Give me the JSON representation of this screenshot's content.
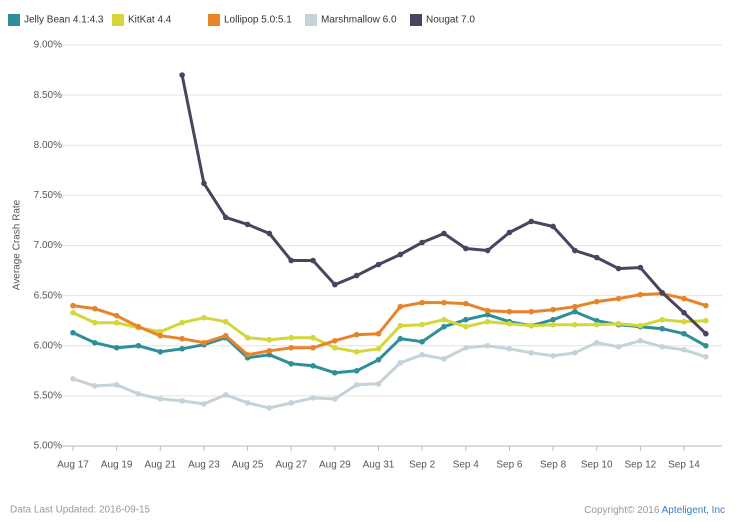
{
  "chart_data": {
    "type": "line",
    "y_label": "Average Crash Rate",
    "categories": [
      "Aug 17",
      null,
      "Aug 19",
      null,
      "Aug 21",
      null,
      "Aug 23",
      null,
      "Aug 25",
      null,
      "Aug 27",
      null,
      "Aug 29",
      null,
      "Aug 31",
      null,
      "Sep 2",
      null,
      "Sep 4",
      null,
      "Sep 6",
      null,
      "Sep 8",
      null,
      "Sep 10",
      null,
      "Sep 12",
      null,
      "Sep 14",
      null
    ],
    "ylim": [
      5,
      9
    ],
    "yticks": [
      {
        "value": 5,
        "label": "5.00%"
      },
      {
        "value": 5.5,
        "label": "5.50%"
      },
      {
        "value": 6,
        "label": "6.00%"
      },
      {
        "value": 6.5,
        "label": "6.50%"
      },
      {
        "value": 7,
        "label": "7.00%"
      },
      {
        "value": 7.5,
        "label": "7.50%"
      },
      {
        "value": 8,
        "label": "8.00%"
      },
      {
        "value": 8.5,
        "label": "8.50%"
      },
      {
        "value": 9,
        "label": "9.00%"
      }
    ],
    "grid": true,
    "series": [
      {
        "name": "Jelly Bean 4.1:4.3",
        "color": "#2e8f9a",
        "values": [
          6.13,
          6.03,
          5.98,
          6.0,
          5.94,
          5.97,
          6.01,
          6.08,
          5.88,
          5.91,
          5.82,
          5.8,
          5.73,
          5.75,
          5.86,
          6.07,
          6.04,
          6.19,
          6.26,
          6.31,
          6.24,
          6.2,
          6.26,
          6.34,
          6.25,
          6.21,
          6.19,
          6.17,
          6.12,
          6.0
        ]
      },
      {
        "name": "KitKat 4.4",
        "color": "#d4d63a",
        "values": [
          6.33,
          6.23,
          6.23,
          6.18,
          6.14,
          6.23,
          6.28,
          6.24,
          6.08,
          6.06,
          6.08,
          6.08,
          5.98,
          5.94,
          5.97,
          6.2,
          6.21,
          6.26,
          6.19,
          6.24,
          6.22,
          6.2,
          6.21,
          6.21,
          6.21,
          6.22,
          6.2,
          6.26,
          6.24,
          6.25
        ]
      },
      {
        "name": "Lollipop 5.0:5.1",
        "color": "#e8832a",
        "values": [
          6.4,
          6.37,
          6.3,
          6.19,
          6.1,
          6.07,
          6.03,
          6.1,
          5.91,
          5.95,
          5.98,
          5.98,
          6.05,
          6.11,
          6.12,
          6.39,
          6.43,
          6.43,
          6.42,
          6.35,
          6.34,
          6.34,
          6.36,
          6.39,
          6.44,
          6.47,
          6.51,
          6.52,
          6.47,
          6.4
        ]
      },
      {
        "name": "Marshmallow 6.0",
        "color": "#c5d3d9",
        "values": [
          5.67,
          5.6,
          5.61,
          5.52,
          5.47,
          5.45,
          5.42,
          5.51,
          5.43,
          5.38,
          5.43,
          5.48,
          5.47,
          5.61,
          5.62,
          5.83,
          5.91,
          5.87,
          5.98,
          6.0,
          5.97,
          5.93,
          5.9,
          5.93,
          6.03,
          5.99,
          6.05,
          5.99,
          5.96,
          5.89
        ]
      },
      {
        "name": "Nougat 7.0",
        "color": "#4a4460",
        "values": [
          null,
          null,
          null,
          null,
          null,
          8.7,
          7.62,
          7.28,
          7.21,
          7.12,
          6.85,
          6.85,
          6.61,
          6.7,
          6.81,
          6.91,
          7.03,
          7.12,
          6.97,
          6.95,
          7.13,
          7.24,
          7.19,
          6.95,
          6.88,
          6.77,
          6.78,
          6.53,
          6.33,
          6.12
        ]
      }
    ]
  },
  "footer": {
    "updated": "Data Last Updated: 2016-09-15",
    "copyright": "Copyright© 2016",
    "company": "Apteligent, Inc"
  }
}
